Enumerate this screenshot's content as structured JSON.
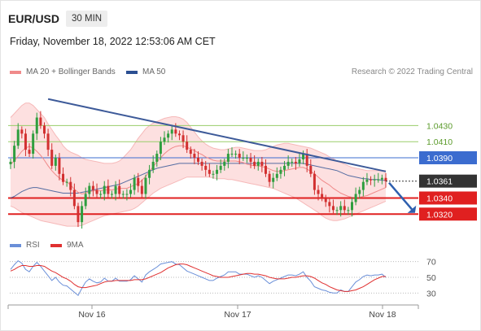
{
  "header": {
    "symbol": "EUR/USD",
    "timeframe": "30 MIN"
  },
  "datetime": "Friday, November 18, 2022 12:53:06 AM CET",
  "legend": {
    "bb_label": "MA 20 + Bollinger Bands",
    "ma50_label": "MA 50",
    "copyright": "Research © 2022 Trading Central",
    "rsi_label": "RSI",
    "rsi_ma_label": "9MA"
  },
  "colors": {
    "bb_band": "#fde0e0",
    "ma20": "#f08a8a",
    "ma50": "#2b4f92",
    "trend": "#3d5a99",
    "green_level": "#9acd6a",
    "blue_level": "#3b6ccf",
    "red_level": "#e02020",
    "price_badge": "#333333",
    "rsi": "#6a8fd8",
    "rsi_ma": "#e03030"
  },
  "chart_data": [
    {
      "type": "candlestick",
      "price_range": [
        1.0296,
        1.0485
      ],
      "x_ticks": [
        "Nov 16",
        "Nov 17",
        "Nov 18"
      ],
      "levels": [
        {
          "value": 1.043,
          "label": "1.0430",
          "kind": "resistance",
          "style": "green"
        },
        {
          "value": 1.041,
          "label": "1.0410",
          "kind": "resistance",
          "style": "green"
        },
        {
          "value": 1.039,
          "label": "1.0390",
          "kind": "pivot",
          "style": "blue"
        },
        {
          "value": 1.034,
          "label": "1.0340",
          "kind": "support",
          "style": "red"
        },
        {
          "value": 1.032,
          "label": "1.0320",
          "kind": "support",
          "style": "red"
        }
      ],
      "last_price": {
        "value": 1.0361,
        "label": "1.0361"
      },
      "closes": [
        1.0385,
        1.0405,
        1.0425,
        1.042,
        1.04,
        1.0395,
        1.042,
        1.044,
        1.043,
        1.042,
        1.04,
        1.038,
        1.039,
        1.037,
        1.036,
        1.036,
        1.035,
        1.033,
        1.031,
        1.033,
        1.0345,
        1.0355,
        1.035,
        1.0345,
        1.0345,
        1.0355,
        1.0345,
        1.0345,
        1.0355,
        1.0345,
        1.0345,
        1.0345,
        1.035,
        1.0365,
        1.0355,
        1.0345,
        1.0365,
        1.0375,
        1.0385,
        1.0395,
        1.041,
        1.0415,
        1.042,
        1.0425,
        1.042,
        1.0418,
        1.041,
        1.04,
        1.0395,
        1.039,
        1.0385,
        1.038,
        1.0375,
        1.037,
        1.037,
        1.0375,
        1.038,
        1.0385,
        1.0395,
        1.0395,
        1.0395,
        1.039,
        1.039,
        1.039,
        1.0385,
        1.038,
        1.0385,
        1.038,
        1.037,
        1.036,
        1.0365,
        1.037,
        1.0375,
        1.038,
        1.0385,
        1.0385,
        1.0383,
        1.0388,
        1.0395,
        1.038,
        1.037,
        1.035,
        1.0345,
        1.034,
        1.0335,
        1.033,
        1.0325,
        1.0325,
        1.033,
        1.0325,
        1.0325,
        1.0335,
        1.0345,
        1.035,
        1.036,
        1.0363,
        1.0362,
        1.0363,
        1.0363,
        1.0365,
        1.0361
      ],
      "ma20": [
        1.0382,
        1.0386,
        1.0392,
        1.0398,
        1.0402,
        1.0404,
        1.0402,
        1.0398,
        1.0393,
        1.0387,
        1.038,
        1.0374,
        1.0369,
        1.0365,
        1.0362,
        1.036,
        1.0356,
        1.0351,
        1.0347,
        1.0345,
        1.0346,
        1.0348,
        1.0349,
        1.0349,
        1.0349,
        1.035,
        1.035,
        1.035,
        1.0351,
        1.0352,
        1.0352,
        1.0352,
        1.0354,
        1.0356,
        1.0358,
        1.0362,
        1.0367,
        1.0373,
        1.0379,
        1.0385,
        1.039,
        1.0395,
        1.0399,
        1.0402,
        1.0404,
        1.0405,
        1.0405,
        1.0403,
        1.0401,
        1.0399,
        1.0396,
        1.0394,
        1.0391,
        1.0389,
        1.0387,
        1.0386,
        1.0386,
        1.0386,
        1.0386,
        1.0386,
        1.0386,
        1.0385,
        1.0384,
        1.0382,
        1.0381,
        1.038,
        1.038,
        1.0379,
        1.0378,
        1.0376,
        1.0374,
        1.0373,
        1.0373,
        1.0374,
        1.0375,
        1.0376,
        1.0377,
        1.0378,
        1.0378,
        1.0376,
        1.0373,
        1.037,
        1.0366,
        1.0362,
        1.0359,
        1.0356,
        1.0352,
        1.0349,
        1.0346,
        1.0344,
        1.0342,
        1.0341,
        1.0341,
        1.0341,
        1.0342,
        1.0343,
        1.0345,
        1.0347,
        1.0349,
        1.0351,
        1.0353
      ],
      "bb_upper": [
        1.044,
        1.0445,
        1.045,
        1.0455,
        1.0458,
        1.0458,
        1.0455,
        1.045,
        1.0445,
        1.044,
        1.0432,
        1.0425,
        1.0418,
        1.0412,
        1.0405,
        1.04,
        1.0397,
        1.0395,
        1.0393,
        1.039,
        1.0388,
        1.0387,
        1.0386,
        1.0385,
        1.0384,
        1.0383,
        1.0383,
        1.0383,
        1.0384,
        1.0386,
        1.039,
        1.0395,
        1.04,
        1.0407,
        1.0414,
        1.042,
        1.0426,
        1.043,
        1.0433,
        1.0435,
        1.0437,
        1.0439,
        1.044,
        1.0441,
        1.0441,
        1.044,
        1.0438,
        1.0434,
        1.0428,
        1.0422,
        1.0416,
        1.0411,
        1.0407,
        1.0404,
        1.0402,
        1.0401,
        1.04,
        1.04,
        1.0401,
        1.0402,
        1.0403,
        1.0403,
        1.0402,
        1.0401,
        1.04,
        1.0399,
        1.0399,
        1.0399,
        1.04,
        1.0402,
        1.0404,
        1.0406,
        1.0407,
        1.0408,
        1.0408,
        1.0407,
        1.0406,
        1.0405,
        1.0404,
        1.0403,
        1.0402,
        1.04,
        1.0398,
        1.0396,
        1.0394,
        1.0391,
        1.0389,
        1.0386,
        1.0384,
        1.0382,
        1.038,
        1.0378,
        1.0377,
        1.0376,
        1.0375,
        1.0374,
        1.0374,
        1.0374,
        1.0374,
        1.0374,
        1.0374
      ],
      "bb_lower": [
        1.033,
        1.0328,
        1.0325,
        1.0322,
        1.032,
        1.0318,
        1.0316,
        1.0314,
        1.0312,
        1.0311,
        1.031,
        1.0309,
        1.0308,
        1.0307,
        1.0306,
        1.0305,
        1.0305,
        1.0305,
        1.0305,
        1.0306,
        1.0308,
        1.031,
        1.0312,
        1.0314,
        1.0316,
        1.0318,
        1.0319,
        1.032,
        1.0321,
        1.0322,
        1.0323,
        1.0324,
        1.0325,
        1.0327,
        1.033,
        1.0334,
        1.0338,
        1.0342,
        1.0346,
        1.0349,
        1.0352,
        1.0354,
        1.0356,
        1.0358,
        1.036,
        1.0362,
        1.0364,
        1.0366,
        1.0366,
        1.0366,
        1.0366,
        1.0366,
        1.0366,
        1.0366,
        1.0365,
        1.0364,
        1.0364,
        1.0364,
        1.0363,
        1.0363,
        1.0362,
        1.0361,
        1.036,
        1.0359,
        1.0358,
        1.0357,
        1.0356,
        1.0355,
        1.0354,
        1.0353,
        1.0352,
        1.035,
        1.0348,
        1.0346,
        1.0344,
        1.0342,
        1.034,
        1.0337,
        1.0334,
        1.0331,
        1.0328,
        1.0325,
        1.0322,
        1.0318,
        1.0315,
        1.0313,
        1.0312,
        1.0312,
        1.0313,
        1.0314,
        1.0316,
        1.0318,
        1.032,
        1.0322,
        1.0324,
        1.0326,
        1.0328,
        1.033,
        1.0332,
        1.0334,
        1.0336
      ],
      "ma50": [
        1.034,
        1.0342,
        1.0345,
        1.0348,
        1.035,
        1.0352,
        1.0353,
        1.0353,
        1.0352,
        1.0351,
        1.035,
        1.0349,
        1.0348,
        1.0347,
        1.0346,
        1.0346,
        1.0346,
        1.0346,
        1.0346,
        1.0347,
        1.0348,
        1.0349,
        1.035,
        1.0351,
        1.0352,
        1.0353,
        1.0354,
        1.0355,
        1.0356,
        1.0357,
        1.0359,
        1.0361,
        1.0363,
        1.0365,
        1.0367,
        1.0369,
        1.0371,
        1.0373,
        1.0375,
        1.0377,
        1.0378,
        1.0379,
        1.038,
        1.0381,
        1.0382,
        1.0383,
        1.0383,
        1.0383,
        1.0383,
        1.0383,
        1.0383,
        1.0383,
        1.0383,
        1.0383,
        1.0383,
        1.0383,
        1.0383,
        1.0383,
        1.0383,
        1.0383,
        1.0383,
        1.0383,
        1.0383,
        1.0383,
        1.0383,
        1.0383,
        1.0383,
        1.0383,
        1.0383,
        1.0383,
        1.0383,
        1.0383,
        1.0383,
        1.0383,
        1.0383,
        1.0383,
        1.0383,
        1.0383,
        1.0383,
        1.0382,
        1.0381,
        1.038,
        1.0379,
        1.0378,
        1.0377,
        1.0376,
        1.0375,
        1.0374,
        1.0372,
        1.037,
        1.0368,
        1.0367,
        1.0366,
        1.0365,
        1.0364,
        1.0364,
        1.0363,
        1.0363,
        1.0363,
        1.0362,
        1.0362
      ],
      "trendline": {
        "start": {
          "index": 10,
          "value": 1.0463
        },
        "end": {
          "index": 100,
          "value": 1.0373
        }
      },
      "forecast_arrow": {
        "from": 1.0361,
        "to": 1.032
      }
    },
    {
      "type": "line",
      "name": "RSI",
      "y_ticks": [
        70,
        50,
        30
      ],
      "ylim": [
        20,
        80
      ],
      "rsi": [
        60,
        66,
        71,
        68,
        60,
        57,
        64,
        69,
        64,
        58,
        52,
        46,
        50,
        44,
        40,
        39,
        35,
        31,
        27,
        36,
        44,
        48,
        45,
        43,
        44,
        49,
        45,
        45,
        49,
        45,
        45,
        45,
        47,
        52,
        48,
        44,
        53,
        57,
        60,
        63,
        67,
        68,
        69,
        70,
        67,
        66,
        62,
        58,
        56,
        54,
        52,
        50,
        48,
        46,
        46,
        49,
        51,
        53,
        57,
        57,
        57,
        54,
        54,
        54,
        52,
        50,
        52,
        50,
        46,
        42,
        45,
        47,
        49,
        51,
        53,
        53,
        52,
        54,
        57,
        50,
        45,
        38,
        36,
        34,
        33,
        31,
        30,
        30,
        34,
        32,
        32,
        38,
        44,
        47,
        51,
        53,
        52,
        53,
        53,
        54,
        50
      ],
      "rsi_ma": [
        58,
        60,
        63,
        65,
        65,
        64,
        64,
        65,
        65,
        64,
        61,
        58,
        56,
        53,
        50,
        48,
        45,
        41,
        38,
        37,
        37,
        38,
        39,
        40,
        42,
        44,
        45,
        45,
        46,
        46,
        46,
        46,
        46,
        47,
        47,
        47,
        48,
        50,
        52,
        54,
        56,
        59,
        62,
        64,
        66,
        67,
        67,
        66,
        64,
        62,
        60,
        58,
        56,
        54,
        52,
        51,
        50,
        50,
        50,
        51,
        52,
        53,
        54,
        55,
        55,
        54,
        54,
        53,
        52,
        50,
        49,
        48,
        48,
        48,
        49,
        50,
        50,
        51,
        52,
        52,
        51,
        49,
        46,
        43,
        41,
        38,
        36,
        34,
        33,
        32,
        32,
        33,
        34,
        36,
        38,
        41,
        44,
        47,
        49,
        51,
        51
      ]
    }
  ]
}
